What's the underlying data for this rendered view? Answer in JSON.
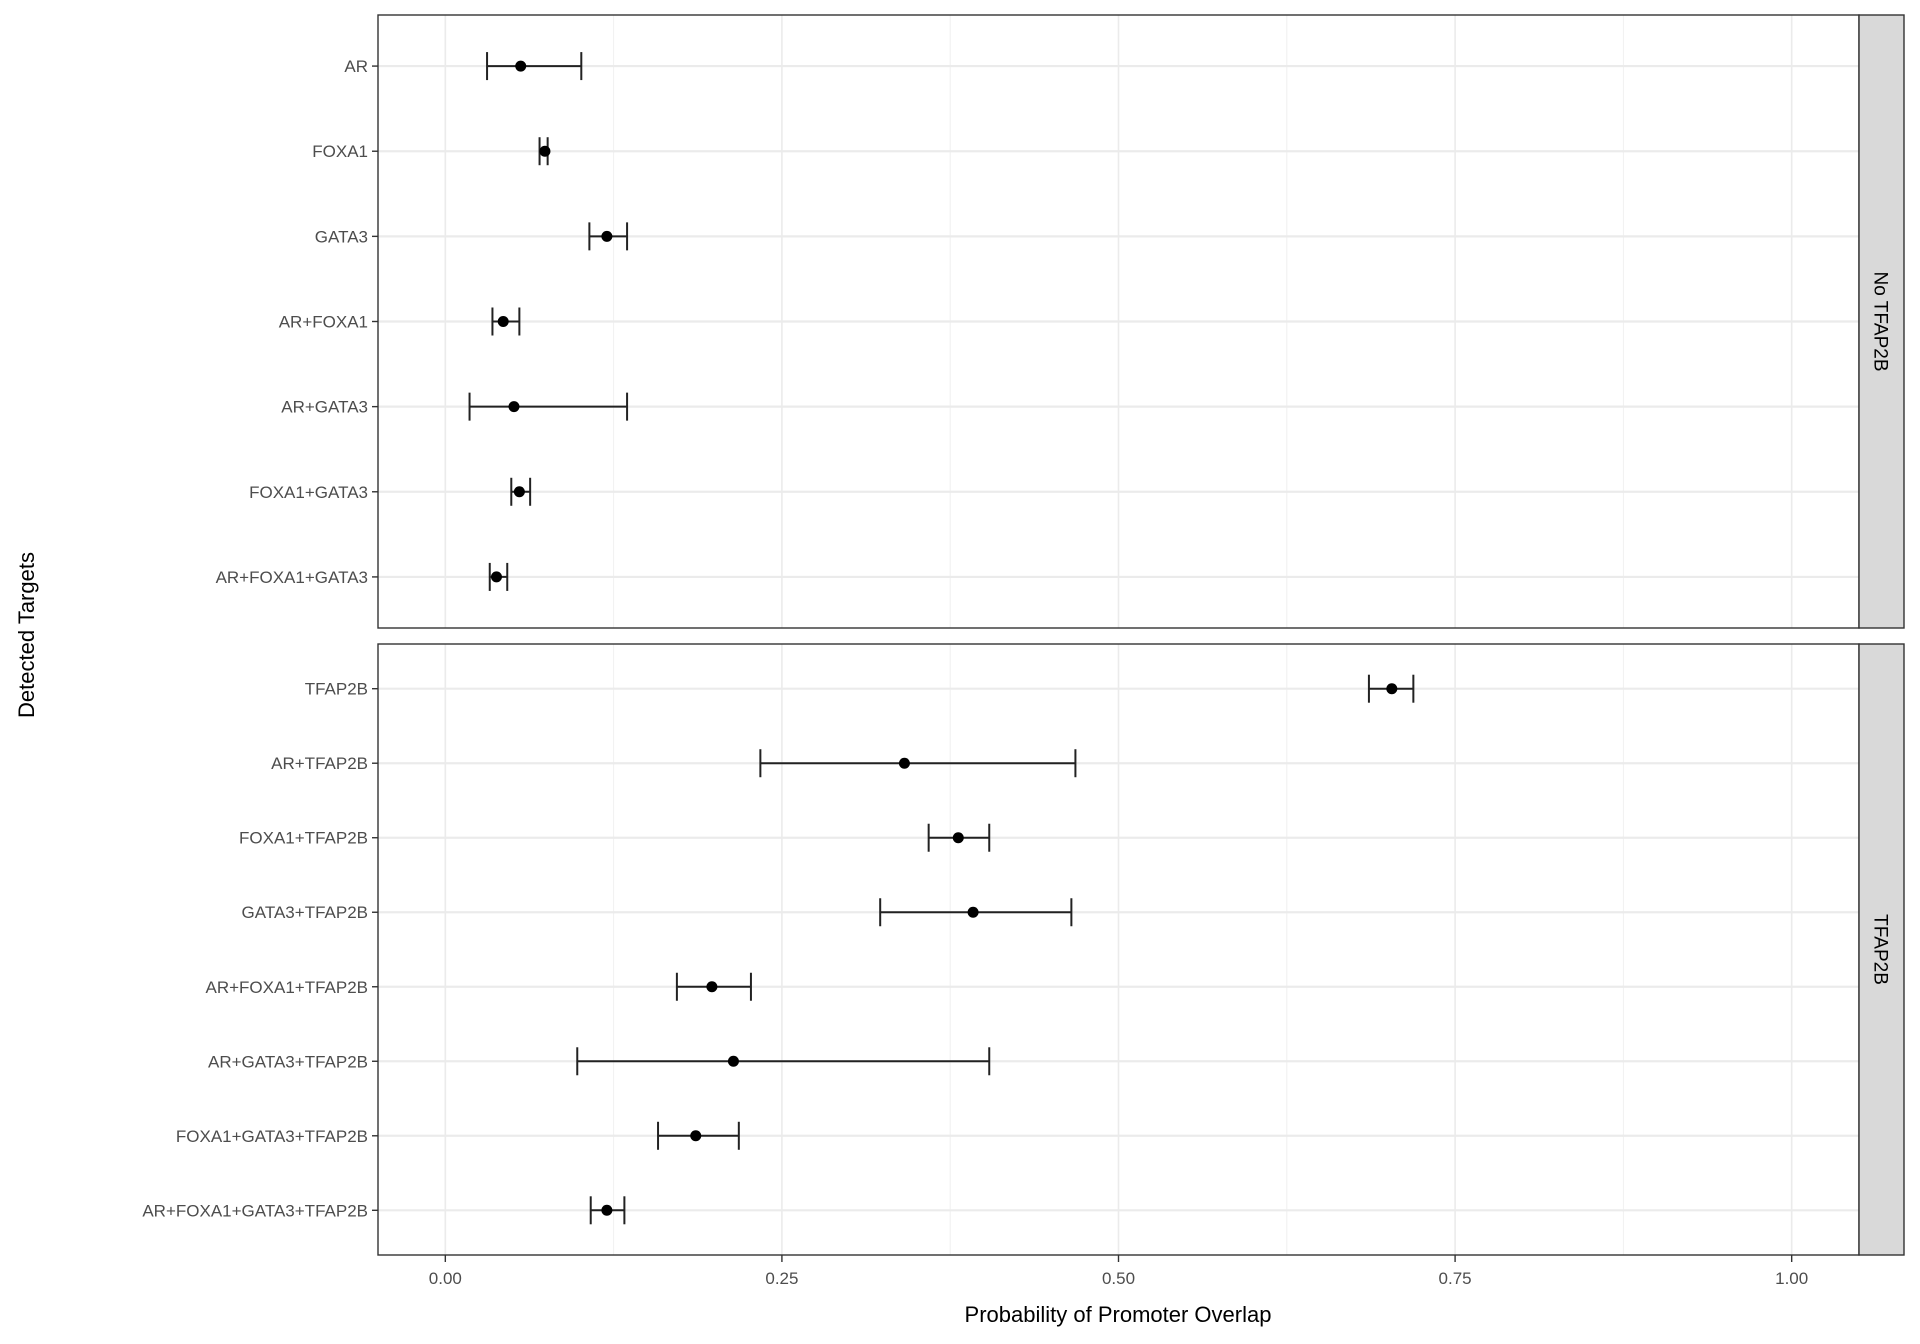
{
  "chart_data": {
    "type": "errorbar-dotplot",
    "xlabel": "Probability of Promoter Overlap",
    "ylabel": "Detected Targets",
    "xlim": [
      -0.05,
      1.05
    ],
    "x_ticks": [
      0,
      0.25,
      0.5,
      0.75,
      1.0
    ],
    "x_tick_labels": [
      "0.00",
      "0.25",
      "0.50",
      "0.75",
      "1.00"
    ],
    "grid": true,
    "facets": [
      {
        "strip": "No TFAP2B",
        "rows": [
          {
            "label": "AR",
            "value": 0.056,
            "low": 0.031,
            "high": 0.101
          },
          {
            "label": "FOXA1",
            "value": 0.074,
            "low": 0.07,
            "high": 0.076
          },
          {
            "label": "GATA3",
            "value": 0.12,
            "low": 0.107,
            "high": 0.135
          },
          {
            "label": "AR+FOXA1",
            "value": 0.043,
            "low": 0.035,
            "high": 0.055
          },
          {
            "label": "AR+GATA3",
            "value": 0.051,
            "low": 0.018,
            "high": 0.135
          },
          {
            "label": "FOXA1+GATA3",
            "value": 0.055,
            "low": 0.049,
            "high": 0.063
          },
          {
            "label": "AR+FOXA1+GATA3",
            "value": 0.038,
            "low": 0.033,
            "high": 0.046
          }
        ]
      },
      {
        "strip": "TFAP2B",
        "rows": [
          {
            "label": "TFAP2B",
            "value": 0.703,
            "low": 0.686,
            "high": 0.719
          },
          {
            "label": "AR+TFAP2B",
            "value": 0.341,
            "low": 0.234,
            "high": 0.468
          },
          {
            "label": "FOXA1+TFAP2B",
            "value": 0.381,
            "low": 0.359,
            "high": 0.404
          },
          {
            "label": "GATA3+TFAP2B",
            "value": 0.392,
            "low": 0.323,
            "high": 0.465
          },
          {
            "label": "AR+FOXA1+TFAP2B",
            "value": 0.198,
            "low": 0.172,
            "high": 0.227
          },
          {
            "label": "AR+GATA3+TFAP2B",
            "value": 0.214,
            "low": 0.098,
            "high": 0.404
          },
          {
            "label": "FOXA1+GATA3+TFAP2B",
            "value": 0.186,
            "low": 0.158,
            "high": 0.218
          },
          {
            "label": "AR+FOXA1+GATA3+TFAP2B",
            "value": 0.12,
            "low": 0.108,
            "high": 0.133
          }
        ]
      }
    ]
  }
}
